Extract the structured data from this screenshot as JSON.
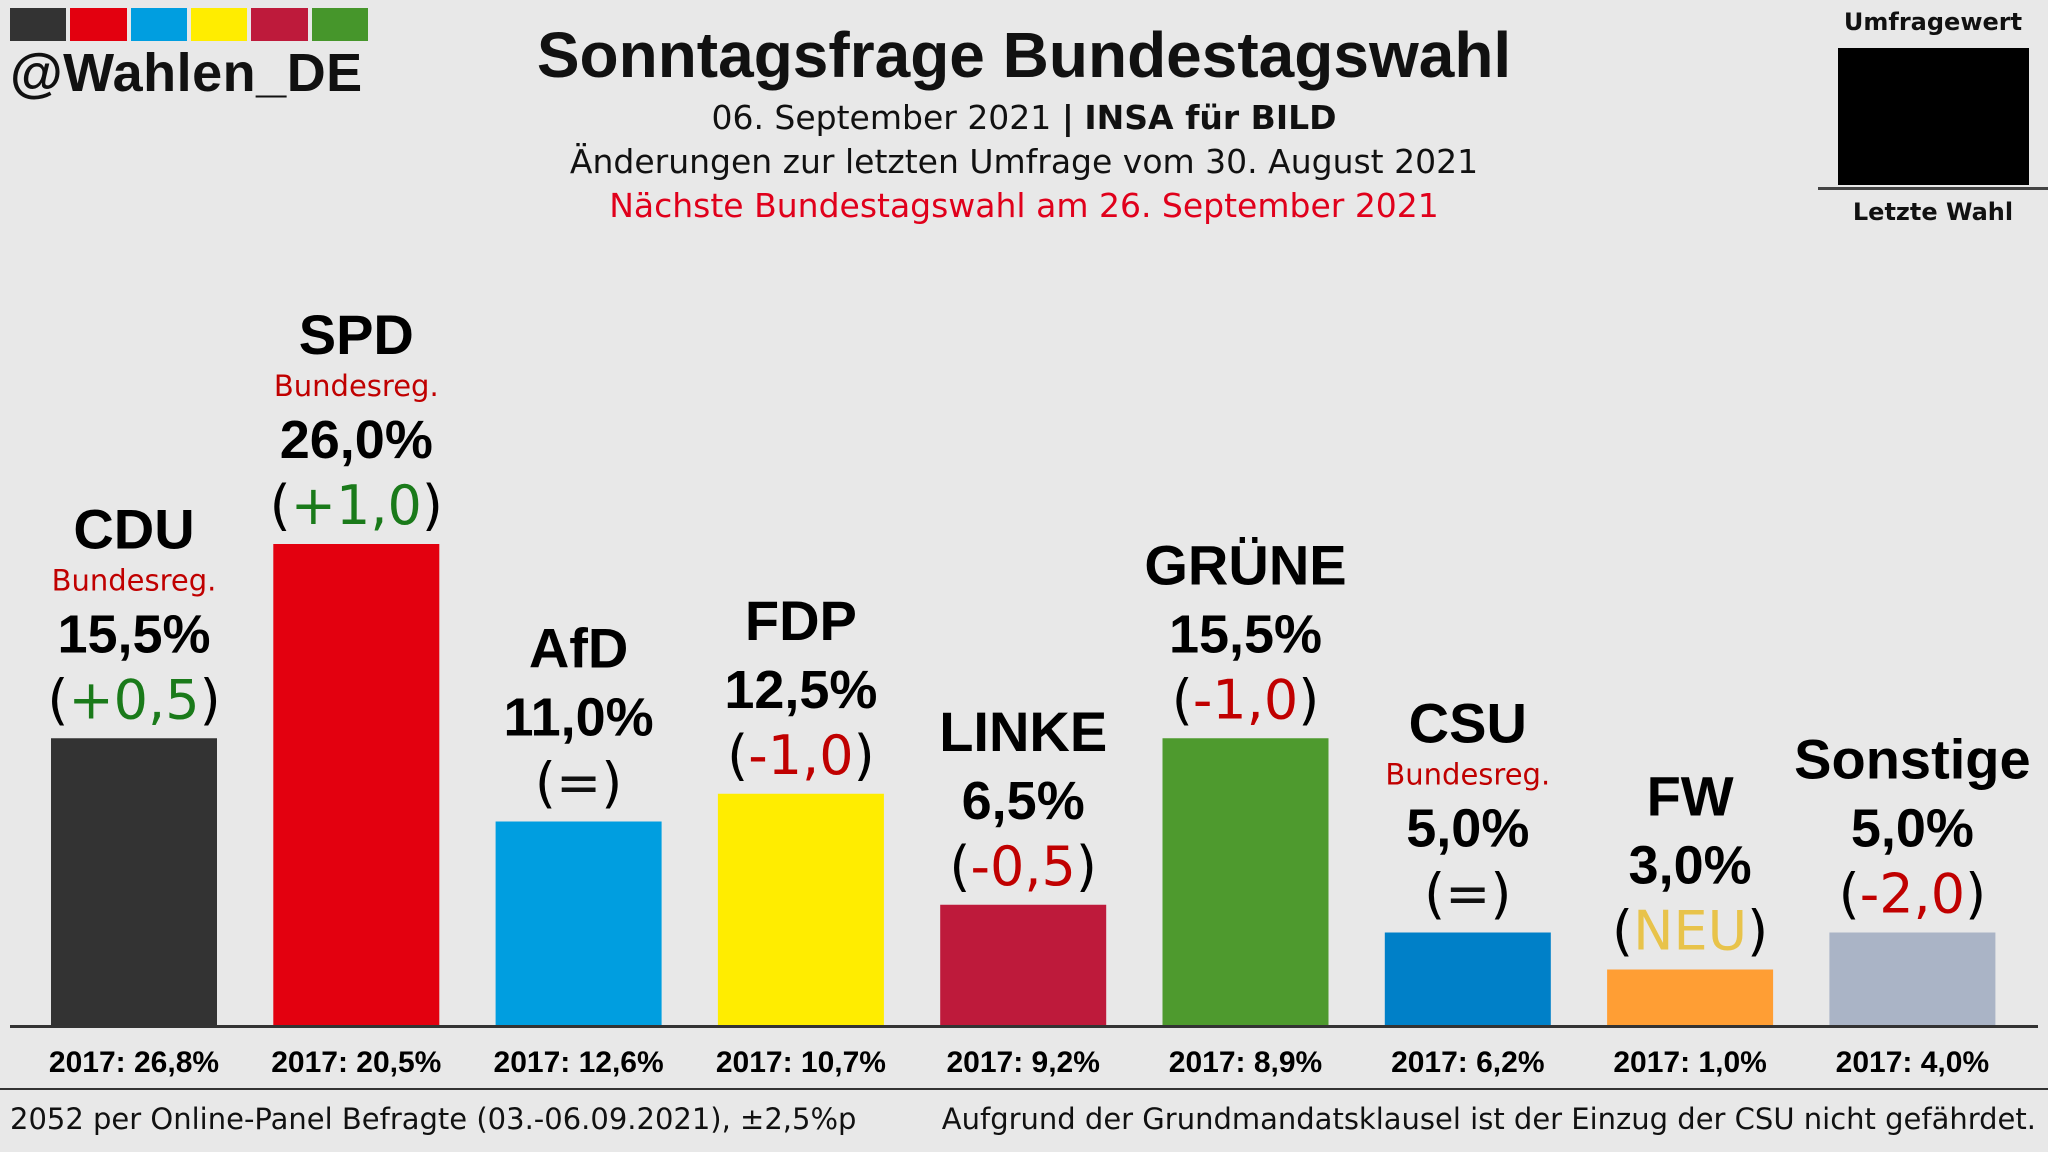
{
  "header": {
    "handle": "@Wahlen_DE",
    "brand_colors": [
      "#333333",
      "#e3000f",
      "#009ee0",
      "#ffed00",
      "#be1a3b",
      "#46962b"
    ],
    "title": "Sonntagsfrage Bundestagswahl",
    "date": "06. September 2021",
    "separator": "|",
    "institute": "INSA für BILD",
    "changes_note": "Änderungen zur letzten Umfrage vom 30. August 2021",
    "next_election": "Nächste Bundestagswahl am 26. September 2021"
  },
  "legend": {
    "top_label": "Umfragewert",
    "bottom_label": "Letzte Wahl"
  },
  "chart_data": {
    "type": "bar",
    "ylim": [
      0,
      30
    ],
    "categories": [
      "CDU",
      "SPD",
      "AfD",
      "FDP",
      "LINKE",
      "GRÜNE",
      "CSU",
      "FW",
      "Sonstige"
    ],
    "values": [
      15.5,
      26.0,
      11.0,
      12.5,
      6.5,
      15.5,
      5.0,
      3.0,
      5.0
    ],
    "value_labels": [
      "15,5%",
      "26,0%",
      "11,0%",
      "12,5%",
      "6,5%",
      "15,5%",
      "5,0%",
      "3,0%",
      "5,0%"
    ],
    "change_labels": [
      "+0,5",
      "+1,0",
      "=",
      "-1,0",
      "-0,5",
      "-1,0",
      "=",
      "NEU",
      "-2,0"
    ],
    "change_colors": [
      "#1a7a1a",
      "#1a7a1a",
      "#111111",
      "#c00000",
      "#c00000",
      "#c00000",
      "#111111",
      "#e8c34a",
      "#c00000"
    ],
    "government_note": "Bundesreg.",
    "government": [
      true,
      true,
      false,
      false,
      false,
      false,
      true,
      false,
      false
    ],
    "colors": [
      "#333333",
      "#e3000f",
      "#009ee0",
      "#ffed00",
      "#be1a3b",
      "#4e9a2e",
      "#0080c8",
      "#ff9e34",
      "#aab4c6"
    ],
    "previous_labels": [
      "2017: 26,8%",
      "2017: 20,5%",
      "2017: 12,6%",
      "2017: 10,7%",
      "2017: 9,2%",
      "2017: 8,9%",
      "2017: 6,2%",
      "2017: 1,0%",
      "2017: 4,0%"
    ]
  },
  "footer": {
    "sample": "2052 per Online-Panel Befragte (03.-06.09.2021), ±2,5%p",
    "note": "Aufgrund der Grundmandatsklausel ist der Einzug der CSU nicht gefährdet."
  }
}
